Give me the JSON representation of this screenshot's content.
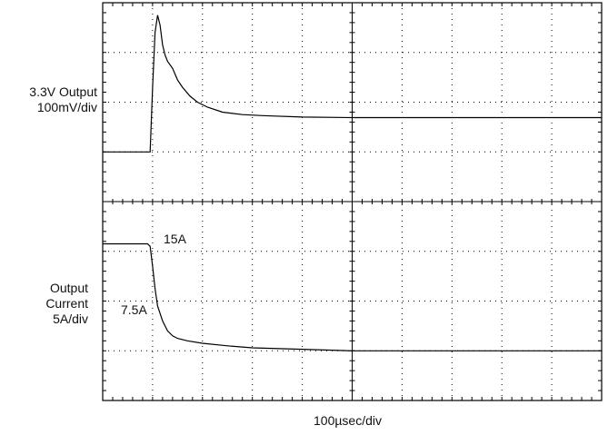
{
  "chart_data": {
    "type": "line",
    "title": "",
    "xlabel": "100µsec/div",
    "grid": true,
    "divisions": {
      "x": 10,
      "y": 8
    },
    "xlim": [
      0,
      10
    ],
    "series": [
      {
        "name": "3.3V Output",
        "axis_label": [
          "3.3V Output",
          "100mV/div"
        ],
        "ylim": [
          -2,
          2
        ],
        "x": [
          0,
          0.95,
          1.0,
          1.05,
          1.1,
          1.15,
          1.2,
          1.25,
          1.3,
          1.4,
          1.5,
          1.6,
          1.75,
          1.9,
          2.1,
          2.4,
          2.8,
          3.2,
          4.0,
          5.0,
          6.0,
          7.0,
          8.0,
          9.0,
          10.0
        ],
        "values": [
          -1.0,
          -1.0,
          0.3,
          1.4,
          1.75,
          1.55,
          1.15,
          0.95,
          0.82,
          0.68,
          0.45,
          0.3,
          0.12,
          0.0,
          -0.1,
          -0.2,
          -0.25,
          -0.27,
          -0.3,
          -0.31,
          -0.31,
          -0.31,
          -0.31,
          -0.31,
          -0.31
        ]
      },
      {
        "name": "Output Current",
        "axis_label": [
          "Output",
          "Current",
          "5A/div"
        ],
        "ylim": [
          -4,
          0
        ],
        "x": [
          0,
          0.9,
          0.95,
          1.0,
          1.05,
          1.1,
          1.2,
          1.3,
          1.4,
          1.5,
          1.7,
          2.0,
          2.5,
          3.0,
          4.0,
          5.0,
          6.0,
          7.0,
          8.0,
          9.0,
          10.0
        ],
        "values": [
          -0.85,
          -0.85,
          -0.9,
          -1.3,
          -1.75,
          -2.1,
          -2.4,
          -2.6,
          -2.7,
          -2.75,
          -2.8,
          -2.85,
          -2.9,
          -2.94,
          -2.97,
          -3.0,
          -3.0,
          -3.0,
          -3.0,
          -3.0,
          -3.0
        ]
      }
    ],
    "annotations": [
      "15A",
      "7.5A"
    ]
  }
}
